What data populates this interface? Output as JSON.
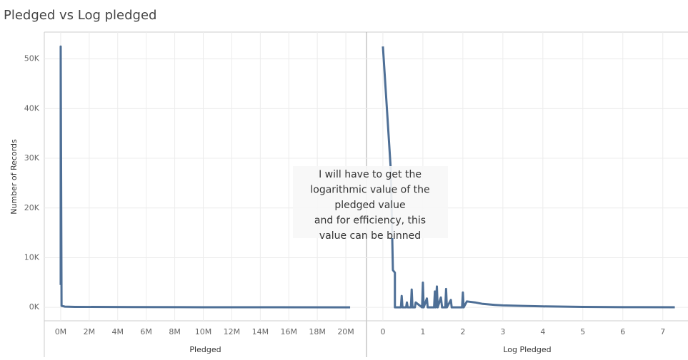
{
  "title": "Pledged vs Log pledged",
  "chart_data": [
    {
      "type": "line",
      "y_label": "Number of Records",
      "x_label": "Pledged",
      "x": [
        0,
        0,
        60000,
        300000,
        1000000,
        5000000,
        10000000,
        15000000,
        20300000
      ],
      "series": [
        {
          "name": "Pledged",
          "color": "#4e6f96",
          "values": [
            4500,
            52500,
            300,
            150,
            100,
            60,
            30,
            20,
            10
          ]
        }
      ],
      "xlim": [
        -1150000,
        21450000
      ],
      "xticks": [
        {
          "value": 0,
          "label": "0M"
        },
        {
          "value": 2000000,
          "label": "2M"
        },
        {
          "value": 4000000,
          "label": "4M"
        },
        {
          "value": 6000000,
          "label": "6M"
        },
        {
          "value": 8000000,
          "label": "8M"
        },
        {
          "value": 10000000,
          "label": "10M"
        },
        {
          "value": 12000000,
          "label": "12M"
        },
        {
          "value": 14000000,
          "label": "14M"
        },
        {
          "value": 16000000,
          "label": "16M"
        },
        {
          "value": 18000000,
          "label": "18M"
        },
        {
          "value": 20000000,
          "label": "20M"
        }
      ],
      "ylim": [
        -2700,
        55400
      ],
      "yticks": [
        {
          "value": 0,
          "label": "0K"
        },
        {
          "value": 10000,
          "label": "10K"
        },
        {
          "value": 20000,
          "label": "20K"
        },
        {
          "value": 30000,
          "label": "30K"
        },
        {
          "value": 40000,
          "label": "40K"
        },
        {
          "value": 50000,
          "label": "50K"
        }
      ],
      "grid": true
    },
    {
      "type": "line",
      "x_label": "Log Pledged",
      "annotation": [
        "I will have to get the",
        "logarithmic value of the",
        "pledged value",
        "and for efficiency, this",
        "value can be binned"
      ],
      "x": [
        0,
        0.1,
        0.2,
        0.25,
        0.3,
        0.3,
        0.45,
        0.47,
        0.49,
        0.58,
        0.6,
        0.62,
        0.7,
        0.72,
        0.74,
        0.8,
        0.82,
        0.98,
        1.0,
        1.02,
        1.1,
        1.12,
        1.28,
        1.3,
        1.32,
        1.35,
        1.37,
        1.45,
        1.48,
        1.56,
        1.58,
        1.6,
        1.7,
        1.72,
        1.98,
        2.0,
        2.02,
        2.1,
        2.3,
        2.5,
        2.8,
        3.0,
        3.5,
        4.0,
        5.0,
        6.0,
        7.3
      ],
      "series": [
        {
          "name": "Log Pledged",
          "color": "#4e6f96",
          "values": [
            52500,
            40000,
            27400,
            7500,
            7000,
            0,
            0,
            2300,
            0,
            0,
            1000,
            0,
            0,
            3600,
            0,
            0,
            1000,
            0,
            5000,
            0,
            1800,
            0,
            0,
            3200,
            0,
            4200,
            0,
            2000,
            0,
            0,
            3700,
            0,
            1500,
            0,
            0,
            3000,
            0,
            1200,
            1000,
            700,
            500,
            400,
            300,
            200,
            100,
            50,
            30
          ]
        }
      ],
      "xlim": [
        -0.41,
        7.63
      ],
      "xticks": [
        0,
        1,
        2,
        3,
        4,
        5,
        6,
        7
      ],
      "ylim": [
        -2700,
        55400
      ],
      "grid": true
    }
  ]
}
